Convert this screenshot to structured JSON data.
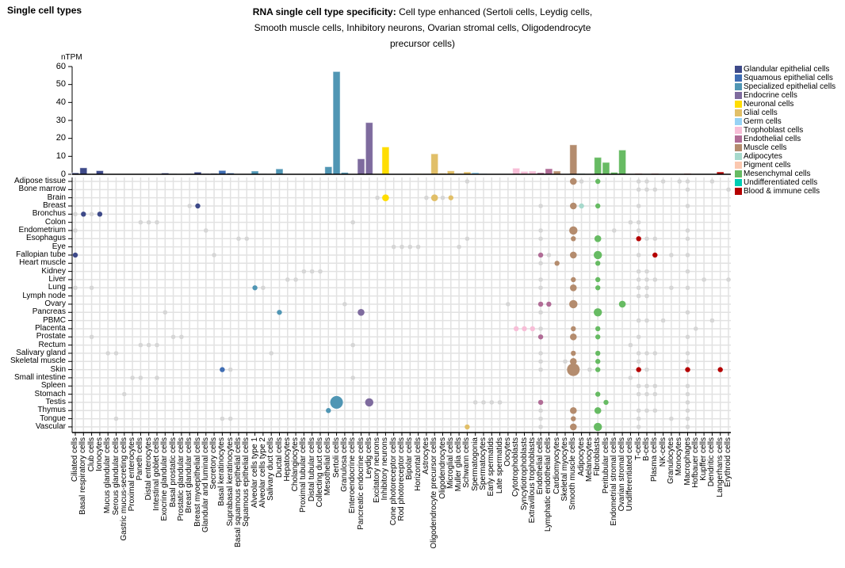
{
  "header": {
    "page_heading": "Single cell types",
    "title_bold": "RNA single cell type specificity:",
    "title_text": " Cell type enhanced (Sertoli cells, Leydig cells, Smooth muscle cells, Inhibitory neurons, Ovarian stromal cells, Oligodendrocyte precursor cells)"
  },
  "chart_data": {
    "type": "bar",
    "ylabel": "nTPM",
    "ylim": [
      0,
      60
    ],
    "yticks": [
      0,
      10,
      20,
      30,
      40,
      50,
      60
    ],
    "legend_position": "right",
    "groups": [
      {
        "name": "Glandular epithelial cells",
        "color": "#3e4a89"
      },
      {
        "name": "Squamous epithelial cells",
        "color": "#3f6db3"
      },
      {
        "name": "Specialized epithelial cells",
        "color": "#5096b4"
      },
      {
        "name": "Endocrine cells",
        "color": "#7e6b9e"
      },
      {
        "name": "Neuronal cells",
        "color": "#ffdd00"
      },
      {
        "name": "Glial cells",
        "color": "#e1bf68"
      },
      {
        "name": "Germ cells",
        "color": "#96d2f5"
      },
      {
        "name": "Trophoblast cells",
        "color": "#f7bed7"
      },
      {
        "name": "Endothelial cells",
        "color": "#b06c96"
      },
      {
        "name": "Muscle cells",
        "color": "#b48c6e"
      },
      {
        "name": "Adipocytes",
        "color": "#a7d9cc"
      },
      {
        "name": "Pigment cells",
        "color": "#fbc8b0"
      },
      {
        "name": "Mesenchymal cells",
        "color": "#67bb63"
      },
      {
        "name": "Undifferentiated cells",
        "color": "#00cdb4"
      },
      {
        "name": "Blood & immune cells",
        "color": "#b50000"
      }
    ],
    "categories": [
      "Ciliated cells",
      "Basal respiratory cells",
      "Club cells",
      "Ionocytes",
      "Mucus glandular cells",
      "Serous glandular cells",
      "Gastric mucus-secreting cells",
      "Proximal enterocytes",
      "Paneth cells",
      "Distal enterocytes",
      "Intestinal goblet cells",
      "Exocrine glandular cells",
      "Basal prostatic cells",
      "Prostatic glandular cells",
      "Breast glandular cells",
      "Breast myoepithelial cells",
      "Glandular and luminal cells",
      "Secretory cells",
      "Basal keratinocytes",
      "Suprabasal keratinocytes",
      "Basal squamous epithelial cells",
      "Squamous epithelial cells",
      "Alveolar cells type 1",
      "Alveolar cells type 2",
      "Salivary duct cells",
      "Ductal cells",
      "Hepatocytes",
      "Cholangiocytes",
      "Proximal tubular cells",
      "Distal tubular cells",
      "Collecting duct cells",
      "Mesothelial cells",
      "Sertoli cells",
      "Granulosa cells",
      "Enteroendocrine cells",
      "Pancreatic endocrine cells",
      "Leydig cells",
      "Excitatory neurons",
      "Inhibitory neurons",
      "Cone photoreceptor cells",
      "Rod photoreceptor cells",
      "Bipolar cells",
      "Horizontal cells",
      "Astrocytes",
      "Oligodendrocyte precursor cells",
      "Oligodendrocytes",
      "Microglial cells",
      "Muller glia cells",
      "Schwann cells",
      "Spermatogonia",
      "Spermatocytes",
      "Early spermatids",
      "Late spermatids",
      "Oocytes",
      "Cytotrophoblasts",
      "Syncytiotrophoblasts",
      "Extravillous trophoblasts",
      "Endothelial cells",
      "Lymphatic endothelial cells",
      "Cardiomyocytes",
      "Skeletal myocytes",
      "Smooth muscle cells",
      "Adipocytes",
      "Melanocytes",
      "Fibroblasts",
      "Peritubular cells",
      "Endometrial stromal cells",
      "Ovarian stromal cells",
      "Undifferentiated cells",
      "T-cells",
      "B-cells",
      "Plasma cells",
      "NK-cells",
      "Granulocytes",
      "Monocytes",
      "Macrophages",
      "Hofbauer cells",
      "Kupffer cells",
      "Dendritic cells",
      "Langerhans cells",
      "Erythroid cells"
    ],
    "category_group": [
      0,
      0,
      0,
      0,
      0,
      0,
      0,
      0,
      0,
      0,
      0,
      0,
      0,
      0,
      0,
      0,
      0,
      0,
      1,
      1,
      1,
      1,
      2,
      2,
      2,
      2,
      2,
      2,
      2,
      2,
      2,
      2,
      2,
      2,
      3,
      3,
      3,
      4,
      4,
      4,
      4,
      4,
      4,
      5,
      5,
      5,
      5,
      5,
      5,
      6,
      6,
      6,
      6,
      6,
      7,
      7,
      7,
      8,
      8,
      9,
      9,
      9,
      10,
      11,
      12,
      12,
      12,
      12,
      13,
      14,
      14,
      14,
      14,
      14,
      14,
      14,
      14,
      14,
      14,
      14,
      14
    ],
    "values": [
      0.8,
      3.6,
      0.3,
      2.0,
      0,
      0,
      0,
      0,
      0,
      0,
      0,
      0.7,
      0.3,
      0,
      0.3,
      1.2,
      0.4,
      0.5,
      2.1,
      0.7,
      0,
      0.2,
      1.8,
      0.3,
      0.2,
      3.0,
      0,
      0,
      0,
      0,
      0,
      4.2,
      57.2,
      1.0,
      0,
      8.6,
      28.8,
      0.3,
      15.2,
      0,
      0,
      0,
      0.3,
      0.3,
      11.4,
      0.6,
      1.9,
      0.4,
      1.3,
      1.0,
      0.4,
      0,
      0,
      0,
      3.4,
      1.6,
      1.8,
      0.9,
      3.1,
      1.8,
      0,
      16.4,
      0.5,
      0,
      9.4,
      6.6,
      1.1,
      13.5,
      0,
      0.4,
      0,
      0.4,
      0,
      0,
      0,
      0.4,
      0.2,
      0,
      0,
      1.3,
      0
    ],
    "tissues": [
      "Adipose tissue",
      "Bone marrow",
      "Brain",
      "Breast",
      "Bronchus",
      "Colon",
      "Endometrium",
      "Esophagus",
      "Eye",
      "Fallopian tube",
      "Heart muscle",
      "Kidney",
      "Liver",
      "Lung",
      "Lymph node",
      "Ovary",
      "Pancreas",
      "PBMC",
      "Placenta",
      "Prostate",
      "Rectum",
      "Salivary gland",
      "Skeletal muscle",
      "Skin",
      "Small intestine",
      "Spleen",
      "Stomach",
      "Testis",
      "Thymus",
      "Tongue",
      "Vascular"
    ],
    "detected_color": "#d6d6d6",
    "dots": {
      "Adipose tissue": [
        [
          48,
          0
        ],
        [
          61,
          2
        ],
        [
          62,
          0
        ],
        [
          64,
          1
        ],
        [
          69,
          0
        ],
        [
          70,
          0
        ],
        [
          72,
          0
        ],
        [
          74,
          0
        ],
        [
          75,
          0
        ],
        [
          78,
          0
        ]
      ],
      "Bone marrow": [
        [
          69,
          0
        ],
        [
          70,
          0
        ],
        [
          71,
          0
        ],
        [
          75,
          0
        ],
        [
          80,
          0
        ]
      ],
      "Brain": [
        [
          37,
          0
        ],
        [
          38,
          2
        ],
        [
          43,
          0
        ],
        [
          44,
          2
        ],
        [
          45,
          0
        ],
        [
          46,
          1
        ]
      ],
      "Breast": [
        [
          14,
          0
        ],
        [
          15,
          1
        ],
        [
          57,
          0
        ],
        [
          61,
          2
        ],
        [
          62,
          1
        ],
        [
          64,
          1
        ],
        [
          69,
          0
        ],
        [
          75,
          0
        ]
      ],
      "Bronchus": [
        [
          0,
          0
        ],
        [
          1,
          1
        ],
        [
          2,
          0
        ],
        [
          3,
          1
        ]
      ],
      "Colon": [
        [
          8,
          0
        ],
        [
          9,
          0
        ],
        [
          10,
          0
        ],
        [
          34,
          0
        ],
        [
          68,
          0
        ],
        [
          69,
          0
        ]
      ],
      "Endometrium": [
        [
          0,
          0
        ],
        [
          16,
          0
        ],
        [
          57,
          0
        ],
        [
          61,
          3
        ],
        [
          66,
          0
        ],
        [
          69,
          0
        ],
        [
          75,
          0
        ]
      ],
      "Esophagus": [
        [
          20,
          0
        ],
        [
          21,
          0
        ],
        [
          48,
          0
        ],
        [
          57,
          0
        ],
        [
          61,
          1
        ],
        [
          64,
          2
        ],
        [
          69,
          1
        ],
        [
          70,
          0
        ],
        [
          71,
          0
        ],
        [
          75,
          0
        ]
      ],
      "Eye": [
        [
          39,
          0
        ],
        [
          40,
          0
        ],
        [
          41,
          0
        ],
        [
          42,
          0
        ],
        [
          47,
          0
        ]
      ],
      "Fallopian tube": [
        [
          0,
          1
        ],
        [
          17,
          0
        ],
        [
          57,
          1
        ],
        [
          58,
          0
        ],
        [
          61,
          2
        ],
        [
          64,
          3
        ],
        [
          69,
          0
        ],
        [
          71,
          1
        ],
        [
          73,
          0
        ],
        [
          75,
          0
        ]
      ],
      "Heart muscle": [
        [
          57,
          0
        ],
        [
          59,
          1
        ],
        [
          64,
          1
        ]
      ],
      "Kidney": [
        [
          28,
          0
        ],
        [
          29,
          0
        ],
        [
          30,
          0
        ],
        [
          69,
          0
        ],
        [
          70,
          0
        ],
        [
          75,
          0
        ]
      ],
      "Liver": [
        [
          26,
          0
        ],
        [
          27,
          0
        ],
        [
          57,
          0
        ],
        [
          61,
          1
        ],
        [
          64,
          1
        ],
        [
          69,
          0
        ],
        [
          70,
          0
        ],
        [
          71,
          0
        ],
        [
          77,
          0
        ],
        [
          80,
          0
        ]
      ],
      "Lung": [
        [
          0,
          0
        ],
        [
          2,
          0
        ],
        [
          22,
          1
        ],
        [
          23,
          0
        ],
        [
          57,
          0
        ],
        [
          61,
          2
        ],
        [
          64,
          1
        ],
        [
          69,
          0
        ],
        [
          70,
          0
        ],
        [
          73,
          0
        ],
        [
          75,
          0
        ]
      ],
      "Lymph node": [
        [
          69,
          0
        ],
        [
          70,
          0
        ]
      ],
      "Ovary": [
        [
          33,
          0
        ],
        [
          53,
          0
        ],
        [
          57,
          1
        ],
        [
          58,
          1
        ],
        [
          61,
          3
        ],
        [
          67,
          2
        ]
      ],
      "Pancreas": [
        [
          11,
          0
        ],
        [
          25,
          1
        ],
        [
          35,
          2
        ],
        [
          57,
          0
        ],
        [
          64,
          3
        ],
        [
          75,
          0
        ]
      ],
      "PBMC": [
        [
          69,
          0
        ],
        [
          70,
          0
        ],
        [
          72,
          0
        ],
        [
          78,
          0
        ]
      ],
      "Placenta": [
        [
          54,
          1
        ],
        [
          55,
          1
        ],
        [
          56,
          1
        ],
        [
          57,
          0
        ],
        [
          61,
          1
        ],
        [
          64,
          1
        ],
        [
          76,
          0
        ]
      ],
      "Prostate": [
        [
          2,
          0
        ],
        [
          12,
          0
        ],
        [
          13,
          0
        ],
        [
          57,
          1
        ],
        [
          61,
          2
        ],
        [
          64,
          1
        ],
        [
          69,
          0
        ],
        [
          75,
          0
        ]
      ],
      "Rectum": [
        [
          8,
          0
        ],
        [
          9,
          0
        ],
        [
          10,
          0
        ],
        [
          34,
          0
        ],
        [
          68,
          0
        ]
      ],
      "Salivary gland": [
        [
          4,
          0
        ],
        [
          5,
          0
        ],
        [
          24,
          0
        ],
        [
          57,
          0
        ],
        [
          61,
          1
        ],
        [
          64,
          1
        ],
        [
          69,
          0
        ],
        [
          70,
          0
        ],
        [
          71,
          0
        ],
        [
          75,
          0
        ]
      ],
      "Skeletal muscle": [
        [
          57,
          0
        ],
        [
          60,
          0
        ],
        [
          61,
          2
        ],
        [
          64,
          1
        ],
        [
          69,
          0
        ],
        [
          75,
          0
        ]
      ],
      "Skin": [
        [
          18,
          1
        ],
        [
          19,
          0
        ],
        [
          57,
          0
        ],
        [
          61,
          5
        ],
        [
          63,
          0
        ],
        [
          64,
          1
        ],
        [
          69,
          1
        ],
        [
          70,
          0
        ],
        [
          75,
          1
        ],
        [
          79,
          1
        ]
      ],
      "Small intestine": [
        [
          7,
          0
        ],
        [
          8,
          0
        ],
        [
          10,
          0
        ],
        [
          34,
          0
        ],
        [
          68,
          0
        ]
      ],
      "Spleen": [
        [
          69,
          0
        ],
        [
          70,
          0
        ],
        [
          71,
          0
        ],
        [
          75,
          0
        ]
      ],
      "Stomach": [
        [
          6,
          0
        ],
        [
          64,
          1
        ],
        [
          69,
          0
        ],
        [
          70,
          0
        ],
        [
          71,
          0
        ],
        [
          75,
          0
        ]
      ],
      "Testis": [
        [
          32,
          5
        ],
        [
          36,
          3
        ],
        [
          49,
          0
        ],
        [
          50,
          0
        ],
        [
          51,
          0
        ],
        [
          52,
          0
        ],
        [
          57,
          1
        ],
        [
          65,
          1
        ],
        [
          75,
          0
        ]
      ],
      "Thymus": [
        [
          31,
          1
        ],
        [
          57,
          0
        ],
        [
          61,
          2
        ],
        [
          64,
          2
        ],
        [
          69,
          0
        ],
        [
          70,
          0
        ],
        [
          71,
          0
        ],
        [
          75,
          0
        ]
      ],
      "Tongue": [
        [
          5,
          0
        ],
        [
          18,
          0
        ],
        [
          19,
          0
        ],
        [
          57,
          0
        ],
        [
          61,
          1
        ],
        [
          69,
          0
        ],
        [
          73,
          0
        ],
        [
          75,
          0
        ]
      ],
      "Vascular": [
        [
          48,
          1
        ],
        [
          57,
          0
        ],
        [
          61,
          2
        ],
        [
          64,
          3
        ],
        [
          69,
          0
        ],
        [
          75,
          0
        ]
      ]
    }
  }
}
